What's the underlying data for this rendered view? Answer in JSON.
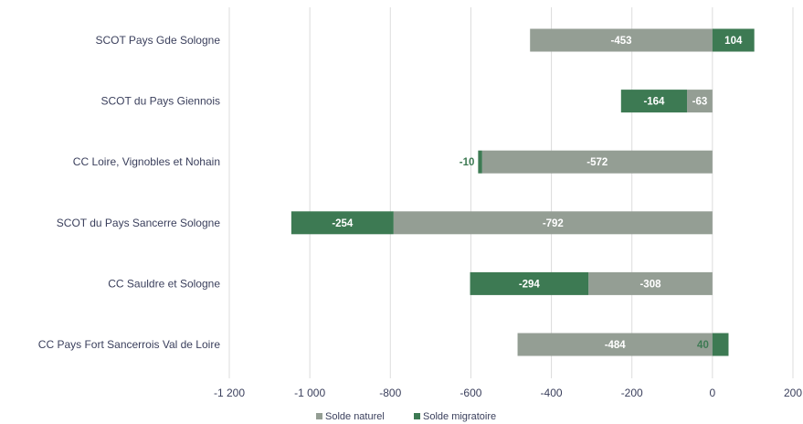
{
  "chart_data": {
    "type": "bar",
    "orientation": "horizontal",
    "stacked": true,
    "categories": [
      "SCOT Pays Gde Sologne",
      "SCOT du Pays Giennois",
      "CC Loire, Vignobles et Nohain",
      "SCOT du Pays Sancerre Sologne",
      "CC Sauldre et Sologne",
      "CC Pays Fort Sancerrois Val de Loire"
    ],
    "series": [
      {
        "name": "Solde naturel",
        "color": "#949e94",
        "values": [
          -453,
          -63,
          -572,
          -792,
          -308,
          -484
        ],
        "labels": [
          "-453",
          "-63",
          "-572",
          "-792",
          "-308",
          "-484"
        ]
      },
      {
        "name": "Solde migratoire",
        "color": "#3d7a53",
        "values": [
          104,
          -164,
          -10,
          -254,
          -294,
          40
        ],
        "labels": [
          "104",
          "-164",
          "-10",
          "-254",
          "-294",
          "40"
        ]
      }
    ],
    "xlim": [
      -1200,
      200
    ],
    "xticks": [
      -1200,
      -1000,
      -800,
      -600,
      -400,
      -200,
      0,
      200
    ],
    "xtick_labels": [
      "-1 200",
      "-1 000",
      "-800",
      "-600",
      "-400",
      "-200",
      "0",
      "200"
    ],
    "grid": true,
    "legend_position": "bottom"
  }
}
